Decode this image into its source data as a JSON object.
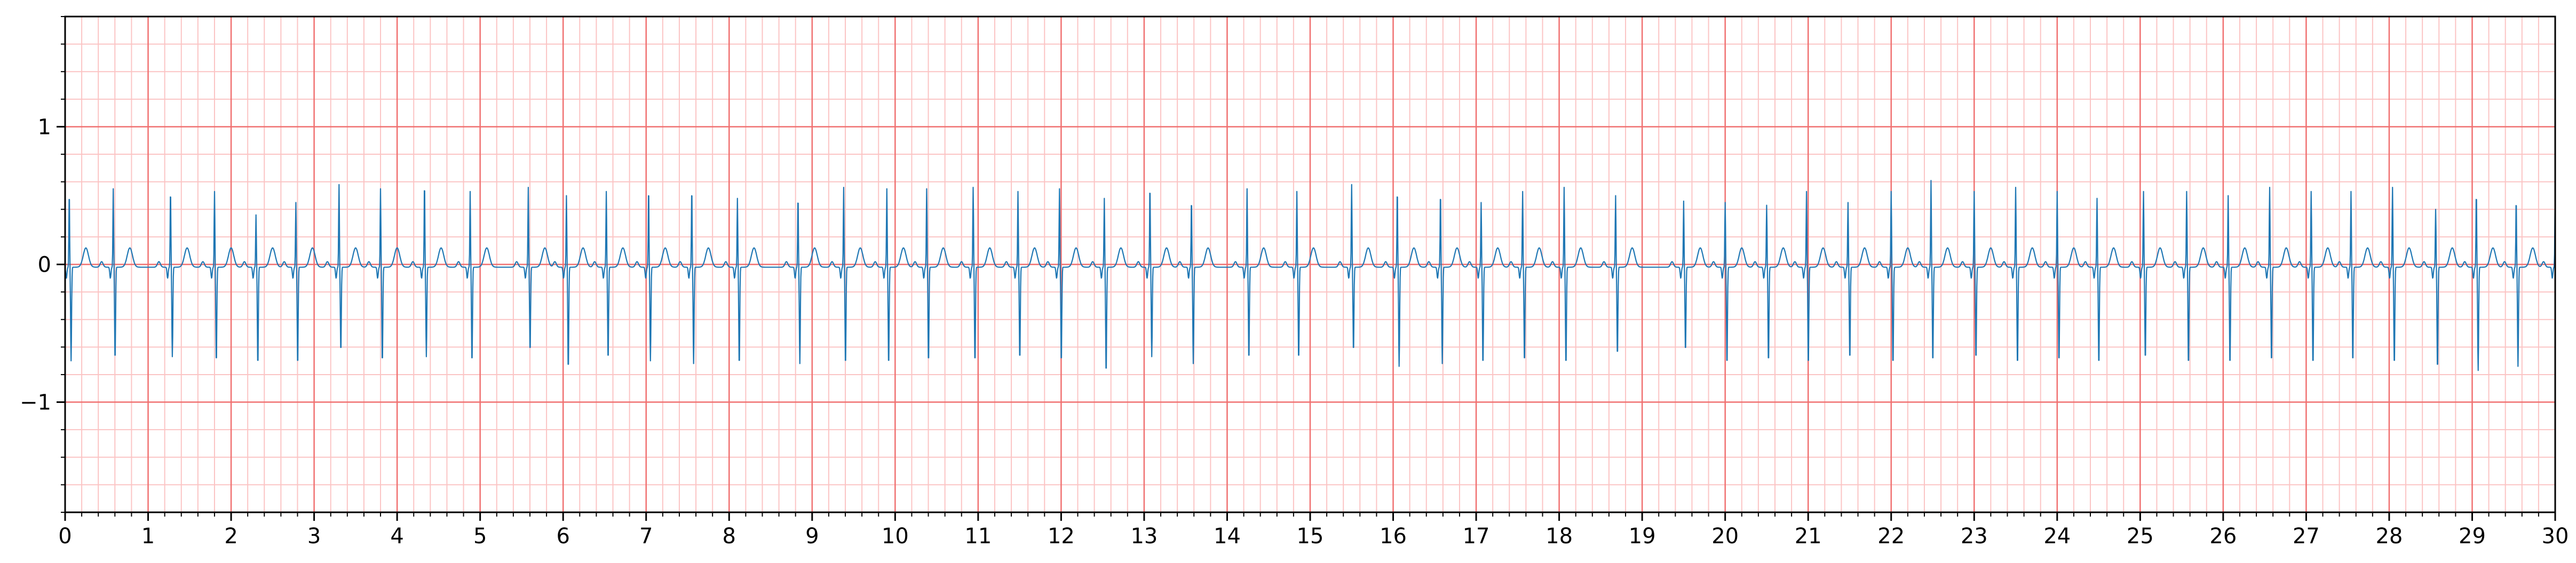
{
  "chart_data": {
    "type": "line",
    "title": "",
    "xlabel": "",
    "ylabel": "",
    "xlim": [
      0,
      30
    ],
    "ylim": [
      -1.8,
      1.8
    ],
    "grid": {
      "major_x_step": 1,
      "major_y_step": 1,
      "minor_step": 0.2,
      "major_color": "#f07070",
      "minor_color": "#fbc4c4"
    },
    "x_ticks": [
      {
        "value": 0,
        "label": "0"
      },
      {
        "value": 1,
        "label": "1"
      },
      {
        "value": 2,
        "label": "2"
      },
      {
        "value": 3,
        "label": "3"
      },
      {
        "value": 4,
        "label": "4"
      },
      {
        "value": 5,
        "label": "5"
      },
      {
        "value": 6,
        "label": "6"
      },
      {
        "value": 7,
        "label": "7"
      },
      {
        "value": 8,
        "label": "8"
      },
      {
        "value": 9,
        "label": "9"
      },
      {
        "value": 10,
        "label": "10"
      },
      {
        "value": 11,
        "label": "11"
      },
      {
        "value": 12,
        "label": "12"
      },
      {
        "value": 13,
        "label": "13"
      },
      {
        "value": 14,
        "label": "14"
      },
      {
        "value": 15,
        "label": "15"
      },
      {
        "value": 16,
        "label": "16"
      },
      {
        "value": 17,
        "label": "17"
      },
      {
        "value": 18,
        "label": "18"
      },
      {
        "value": 19,
        "label": "19"
      },
      {
        "value": 20,
        "label": "20"
      },
      {
        "value": 21,
        "label": "21"
      },
      {
        "value": 22,
        "label": "22"
      },
      {
        "value": 23,
        "label": "23"
      },
      {
        "value": 24,
        "label": "24"
      },
      {
        "value": 25,
        "label": "25"
      },
      {
        "value": 26,
        "label": "26"
      },
      {
        "value": 27,
        "label": "27"
      },
      {
        "value": 28,
        "label": "28"
      },
      {
        "value": 29,
        "label": "29"
      },
      {
        "value": 30,
        "label": "30"
      }
    ],
    "y_ticks": [
      {
        "value": 1,
        "label": "1"
      },
      {
        "value": 0,
        "label": "0"
      },
      {
        "value": -1,
        "label": "−1"
      }
    ],
    "series": [
      {
        "color": "#1f77b4",
        "beat_times": [
          0.05,
          0.58,
          1.27,
          1.8,
          2.3,
          2.78,
          3.3,
          3.8,
          4.33,
          4.88,
          5.58,
          6.04,
          6.52,
          7.03,
          7.55,
          8.1,
          8.83,
          9.38,
          9.9,
          10.38,
          10.94,
          11.48,
          11.98,
          12.52,
          13.07,
          13.57,
          14.24,
          14.84,
          15.5,
          16.05,
          16.57,
          17.06,
          17.56,
          18.06,
          18.68,
          19.5,
          20.0,
          20.5,
          20.98,
          21.48,
          22.0,
          22.48,
          23.0,
          23.5,
          24.0,
          24.48,
          25.04,
          25.56,
          26.06,
          26.56,
          27.06,
          27.54,
          28.04,
          28.56,
          29.05,
          29.53,
          30.0
        ],
        "r_peaks": [
          0.55,
          0.57,
          0.57,
          0.55,
          0.38,
          0.47,
          0.6,
          0.57,
          0.62,
          0.55,
          0.58,
          0.52,
          0.55,
          0.58,
          0.58,
          0.5,
          0.52,
          0.58,
          0.57,
          0.57,
          0.58,
          0.55,
          0.57,
          0.5,
          0.6,
          0.5,
          0.57,
          0.55,
          0.6,
          0.57,
          0.55,
          0.47,
          0.55,
          0.58,
          0.52,
          0.48,
          0.47,
          0.45,
          0.55,
          0.47,
          0.55,
          0.63,
          0.55,
          0.58,
          0.55,
          0.5,
          0.55,
          0.55,
          0.52,
          0.58,
          0.55,
          0.55,
          0.58,
          0.42,
          0.55,
          0.5,
          0.55
        ],
        "s_troughs": [
          -0.68,
          -0.68,
          -0.65,
          -0.7,
          -0.72,
          -0.72,
          -0.62,
          -0.7,
          -0.65,
          -0.7,
          -0.62,
          -0.75,
          -0.68,
          -0.68,
          -0.7,
          -0.72,
          -0.7,
          -0.72,
          -0.72,
          -0.7,
          -0.7,
          -0.68,
          -0.7,
          -0.78,
          -0.65,
          -0.7,
          -0.68,
          -0.68,
          -0.62,
          -0.72,
          -0.7,
          -0.72,
          -0.7,
          -0.72,
          -0.65,
          -0.62,
          -0.72,
          -0.7,
          -0.72,
          -0.68,
          -0.72,
          -0.7,
          -0.68,
          -0.72,
          -0.7,
          -0.72,
          -0.68,
          -0.72,
          -0.72,
          -0.7,
          -0.72,
          -0.7,
          -0.72,
          -0.75,
          -0.75,
          -0.72,
          -0.75
        ]
      }
    ]
  }
}
